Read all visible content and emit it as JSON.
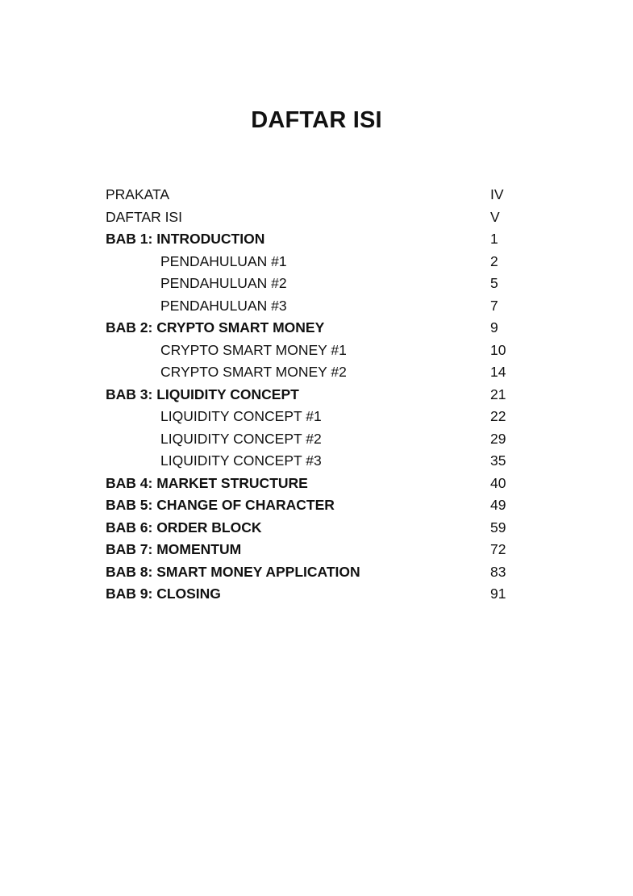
{
  "title": "DAFTAR ISI",
  "entries": [
    {
      "label": "PRAKATA",
      "page": "IV",
      "level": "top"
    },
    {
      "label": "DAFTAR ISI",
      "page": "V",
      "level": "top"
    },
    {
      "label": "BAB 1: INTRODUCTION",
      "page": "1",
      "level": "chapter"
    },
    {
      "label": "PENDAHULUAN #1",
      "page": "2",
      "level": "sub"
    },
    {
      "label": "PENDAHULUAN #2",
      "page": "5",
      "level": "sub"
    },
    {
      "label": "PENDAHULUAN #3",
      "page": "7",
      "level": "sub"
    },
    {
      "label": "BAB 2: CRYPTO SMART MONEY",
      "page": "9",
      "level": "chapter"
    },
    {
      "label": "CRYPTO SMART MONEY #1",
      "page": "10",
      "level": "sub"
    },
    {
      "label": "CRYPTO SMART MONEY #2",
      "page": "14",
      "level": "sub"
    },
    {
      "label": "BAB 3: LIQUIDITY CONCEPT",
      "page": "21",
      "level": "chapter"
    },
    {
      "label": "LIQUIDITY CONCEPT #1",
      "page": "22",
      "level": "sub"
    },
    {
      "label": "LIQUIDITY CONCEPT #2",
      "page": "29",
      "level": "sub"
    },
    {
      "label": "LIQUIDITY CONCEPT #3",
      "page": "35",
      "level": "sub"
    },
    {
      "label": "BAB 4: MARKET STRUCTURE",
      "page": "40",
      "level": "chapter"
    },
    {
      "label": "BAB 5: CHANGE OF CHARACTER",
      "page": "49",
      "level": "chapter"
    },
    {
      "label": "BAB 6: ORDER BLOCK",
      "page": "59",
      "level": "chapter"
    },
    {
      "label": "BAB 7: MOMENTUM",
      "page": "72",
      "level": "chapter"
    },
    {
      "label": "BAB 8: SMART MONEY APPLICATION",
      "page": "83",
      "level": "chapter"
    },
    {
      "label": "BAB 9: CLOSING",
      "page": "91",
      "level": "chapter"
    }
  ]
}
